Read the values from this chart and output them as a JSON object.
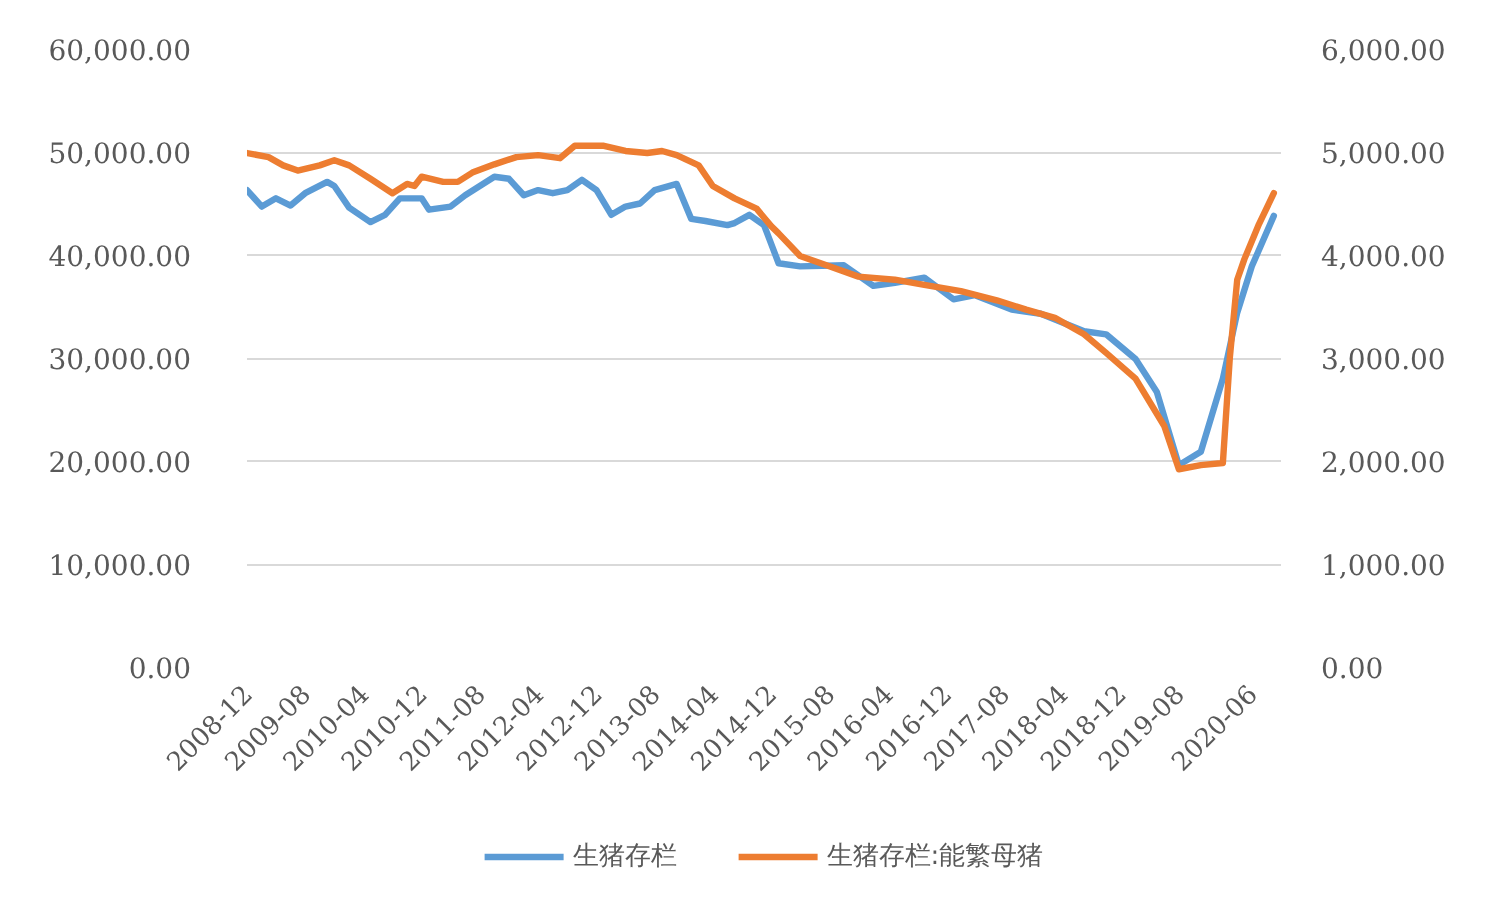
{
  "chart_data": {
    "type": "line",
    "xlim": [
      "2008-12",
      "2020-10"
    ],
    "xticks": [
      "2008-12",
      "2009-08",
      "2010-04",
      "2010-12",
      "2011-08",
      "2012-04",
      "2012-12",
      "2013-08",
      "2014-04",
      "2014-12",
      "2015-08",
      "2016-04",
      "2016-12",
      "2017-08",
      "2018-04",
      "2018-12",
      "2019-08",
      "2020-06"
    ],
    "ylim": [
      0,
      60000
    ],
    "yticks": [
      {
        "value": 0,
        "label": "0.00"
      },
      {
        "value": 10000,
        "label": "10,000.00"
      },
      {
        "value": 20000,
        "label": "20,000.00"
      },
      {
        "value": 30000,
        "label": "30,000.00"
      },
      {
        "value": 40000,
        "label": "40,000.00"
      },
      {
        "value": 50000,
        "label": "50,000.00"
      },
      {
        "value": 60000,
        "label": "60,000.00"
      }
    ],
    "y2lim": [
      0,
      6000
    ],
    "y2ticks": [
      {
        "value": 0,
        "label": "0.00"
      },
      {
        "value": 1000,
        "label": "1,000.00"
      },
      {
        "value": 2000,
        "label": "2,000.00"
      },
      {
        "value": 3000,
        "label": "3,000.00"
      },
      {
        "value": 4000,
        "label": "4,000.00"
      },
      {
        "value": 5000,
        "label": "5,000.00"
      },
      {
        "value": 6000,
        "label": "6,000.00"
      }
    ],
    "grid": "y",
    "legend": "bottom",
    "series": [
      {
        "name": "生猪存栏",
        "color": "#5b9bd5",
        "x": [
          "2008-12",
          "2009-02",
          "2009-04",
          "2009-06",
          "2009-08",
          "2009-11",
          "2009-12",
          "2010-02",
          "2010-05",
          "2010-07",
          "2010-09",
          "2010-12",
          "2011-01",
          "2011-04",
          "2011-06",
          "2011-10",
          "2011-12",
          "2012-02",
          "2012-04",
          "2012-06",
          "2012-08",
          "2012-10",
          "2012-12",
          "2013-02",
          "2013-04",
          "2013-06",
          "2013-08",
          "2013-11",
          "2014-01",
          "2014-03",
          "2014-06",
          "2014-07",
          "2014-09",
          "2014-11",
          "2015-01",
          "2015-04",
          "2015-10",
          "2016-02",
          "2016-05",
          "2016-09",
          "2017-01",
          "2017-04",
          "2017-09",
          "2018-01",
          "2018-07",
          "2018-10",
          "2019-02",
          "2019-05",
          "2019-08",
          "2019-11",
          "2020-02",
          "2020-04",
          "2020-06",
          "2020-09"
        ],
        "values": [
          46300,
          44700,
          45500,
          44800,
          46000,
          47100,
          46700,
          44600,
          43200,
          43900,
          45500,
          45500,
          44400,
          44700,
          45800,
          47600,
          47400,
          45800,
          46300,
          46000,
          46300,
          47300,
          46300,
          43900,
          44700,
          45000,
          46300,
          46900,
          43500,
          43300,
          42900,
          43100,
          43900,
          42900,
          39200,
          38900,
          39000,
          37000,
          37300,
          37800,
          35700,
          36100,
          34700,
          34300,
          32600,
          32300,
          29900,
          26700,
          19600,
          20900,
          28000,
          34400,
          38900,
          43800
        ]
      },
      {
        "name": "生猪存栏:能繁母猪",
        "color": "#ed7d31",
        "axis": "y2",
        "x": [
          "2008-12",
          "2009-03",
          "2009-05",
          "2009-07",
          "2009-10",
          "2009-12",
          "2010-02",
          "2010-05",
          "2010-08",
          "2010-10",
          "2010-11",
          "2010-12",
          "2011-03",
          "2011-05",
          "2011-07",
          "2011-10",
          "2012-01",
          "2012-04",
          "2012-07",
          "2012-09",
          "2013-01",
          "2013-04",
          "2013-07",
          "2013-09",
          "2013-11",
          "2014-02",
          "2014-04",
          "2014-07",
          "2014-10",
          "2014-12",
          "2015-01",
          "2015-04",
          "2015-08",
          "2015-12",
          "2016-05",
          "2016-09",
          "2017-02",
          "2017-07",
          "2017-11",
          "2018-03",
          "2018-07",
          "2018-10",
          "2019-02",
          "2019-06",
          "2019-08",
          "2019-11",
          "2020-02",
          "2020-03",
          "2020-04",
          "2020-05",
          "2020-07",
          "2020-09"
        ],
        "values": [
          4990,
          4950,
          4870,
          4820,
          4870,
          4920,
          4870,
          4740,
          4600,
          4690,
          4670,
          4760,
          4710,
          4710,
          4800,
          4880,
          4950,
          4970,
          4940,
          5060,
          5060,
          5010,
          4990,
          5010,
          4970,
          4870,
          4670,
          4550,
          4450,
          4280,
          4210,
          3990,
          3890,
          3790,
          3760,
          3710,
          3650,
          3560,
          3470,
          3390,
          3230,
          3050,
          2800,
          2340,
          1920,
          1960,
          1980,
          3000,
          3760,
          3960,
          4300,
          4600
        ]
      }
    ]
  }
}
